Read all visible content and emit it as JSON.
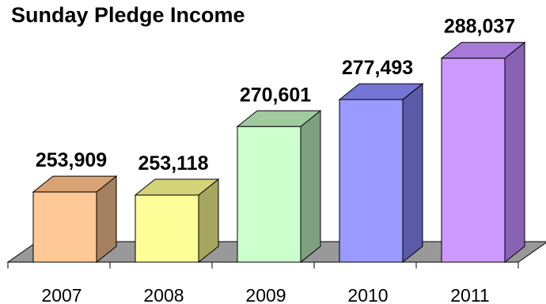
{
  "chart_data": {
    "type": "bar",
    "title": "Sunday Pledge Income",
    "xlabel": "",
    "ylabel": "",
    "categories": [
      "2007",
      "2008",
      "2009",
      "2010",
      "2011"
    ],
    "values": [
      253909,
      253118,
      270601,
      277493,
      288037
    ],
    "value_labels": [
      "253,909",
      "253,118",
      "270,601",
      "277,493",
      "288,037"
    ],
    "ylim": [
      236000,
      290000
    ],
    "grid": false,
    "legend": "none",
    "three_d": true,
    "colors": {
      "bars": [
        {
          "front": "#FFC896",
          "side": "#A5805E",
          "top": "#D9A373"
        },
        {
          "front": "#FFFF99",
          "side": "#A6A65E",
          "top": "#D4D479"
        },
        {
          "front": "#CCFFCC",
          "side": "#7FA07F",
          "top": "#9FCB9F"
        },
        {
          "front": "#9999FF",
          "side": "#5A5AA8",
          "top": "#7575D6"
        },
        {
          "front": "#CC99FF",
          "side": "#8A62B4",
          "top": "#A57AD8"
        }
      ],
      "floor": "#999999",
      "outline": "#000000"
    }
  }
}
